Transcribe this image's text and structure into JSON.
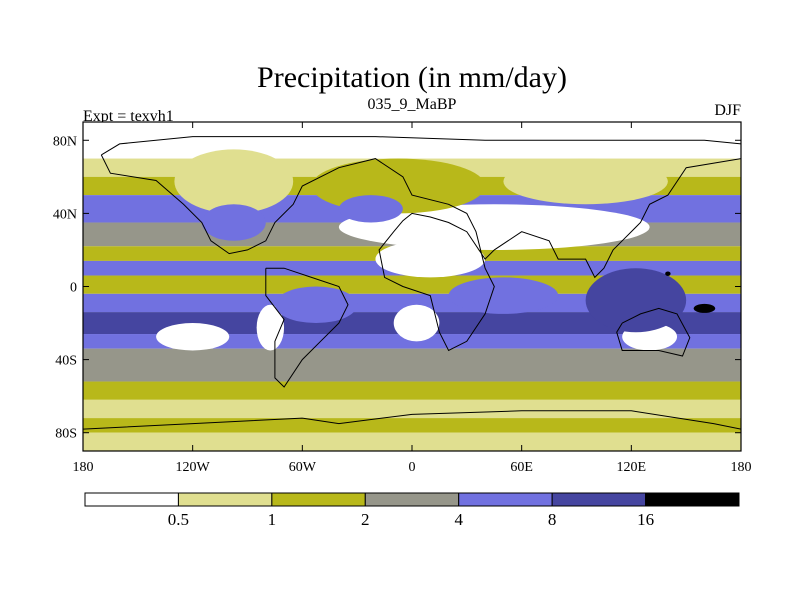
{
  "chart_data": {
    "type": "heatmap",
    "title": "Precipitation (in mm/day)",
    "subtitle_left": "Expt = texvh1",
    "subtitle_center": "035_9_MaBP",
    "subtitle_right": "DJF",
    "x_axis": {
      "range": [
        -180,
        180
      ],
      "ticks": [
        {
          "value": -180,
          "label": "180"
        },
        {
          "value": -120,
          "label": "120W"
        },
        {
          "value": -60,
          "label": "60W"
        },
        {
          "value": 0,
          "label": "0"
        },
        {
          "value": 60,
          "label": "60E"
        },
        {
          "value": 120,
          "label": "120E"
        },
        {
          "value": 180,
          "label": "180"
        }
      ]
    },
    "y_axis": {
      "range": [
        -90,
        90
      ],
      "ticks": [
        {
          "value": 80,
          "label": "80N"
        },
        {
          "value": 40,
          "label": "40N"
        },
        {
          "value": 0,
          "label": "0"
        },
        {
          "value": -40,
          "label": "40S"
        },
        {
          "value": -80,
          "label": "80S"
        }
      ]
    },
    "color_levels": [
      0.5,
      1,
      2,
      4,
      8,
      16
    ],
    "colorbar": [
      {
        "max": 0.5,
        "color": "#ffffff"
      },
      {
        "min": 0.5,
        "max": 1,
        "color": "#e0df90"
      },
      {
        "min": 1,
        "max": 2,
        "color": "#b8b81a"
      },
      {
        "min": 2,
        "max": 4,
        "color": "#96968a"
      },
      {
        "min": 4,
        "max": 8,
        "color": "#7171e0"
      },
      {
        "min": 8,
        "max": 16,
        "color": "#4545a0"
      },
      {
        "min": 16,
        "color": "#000000"
      }
    ],
    "colorbar_labels": [
      "0.5",
      "1",
      "2",
      "4",
      "8",
      "16"
    ],
    "bands": [
      {
        "lat": [
          70,
          90
        ],
        "level": 0
      },
      {
        "lat": [
          60,
          70
        ],
        "level": 1
      },
      {
        "lat": [
          50,
          60
        ],
        "level": 2
      },
      {
        "lat": [
          35,
          50
        ],
        "level": 4
      },
      {
        "lat": [
          22,
          35
        ],
        "level": 3
      },
      {
        "lat": [
          14,
          22
        ],
        "level": 2
      },
      {
        "lat": [
          6,
          14
        ],
        "level": 4
      },
      {
        "lat": [
          -4,
          6
        ],
        "level": 2
      },
      {
        "lat": [
          -14,
          -4
        ],
        "level": 4
      },
      {
        "lat": [
          -26,
          -14
        ],
        "level": 5
      },
      {
        "lat": [
          -34,
          -26
        ],
        "level": 4
      },
      {
        "lat": [
          -52,
          -34
        ],
        "level": 3
      },
      {
        "lat": [
          -62,
          -52
        ],
        "level": 2
      },
      {
        "lat": [
          -72,
          -62
        ],
        "level": 1
      },
      {
        "lat": [
          -80,
          -72
        ],
        "level": 2
      },
      {
        "lat": [
          -90,
          -80
        ],
        "level": 1
      }
    ],
    "patches": [
      {
        "lon": [
          -40,
          130
        ],
        "lat": [
          20,
          45
        ],
        "level": 0
      },
      {
        "lon": [
          -20,
          40
        ],
        "lat": [
          5,
          25
        ],
        "level": 0
      },
      {
        "lon": [
          -55,
          40
        ],
        "lat": [
          40,
          70
        ],
        "level": 2
      },
      {
        "lon": [
          -130,
          -65
        ],
        "lat": [
          40,
          75
        ],
        "level": 1
      },
      {
        "lon": [
          50,
          140
        ],
        "lat": [
          45,
          70
        ],
        "level": 1
      },
      {
        "lon": [
          -115,
          -80
        ],
        "lat": [
          25,
          45
        ],
        "level": 4
      },
      {
        "lon": [
          -40,
          -5
        ],
        "lat": [
          35,
          50
        ],
        "level": 4
      },
      {
        "lon": [
          -140,
          -100
        ],
        "lat": [
          -35,
          -20
        ],
        "level": 0
      },
      {
        "lon": [
          -85,
          -70
        ],
        "lat": [
          -35,
          -10
        ],
        "level": 0
      },
      {
        "lon": [
          -10,
          15
        ],
        "lat": [
          -30,
          -10
        ],
        "level": 0
      },
      {
        "lon": [
          115,
          145
        ],
        "lat": [
          -35,
          -20
        ],
        "level": 0
      },
      {
        "lon": [
          95,
          150
        ],
        "lat": [
          -25,
          10
        ],
        "level": 5
      },
      {
        "lon": [
          -75,
          -30
        ],
        "lat": [
          -20,
          0
        ],
        "level": 4
      },
      {
        "lon": [
          20,
          80
        ],
        "lat": [
          -15,
          5
        ],
        "level": 4
      }
    ],
    "black_spots": [
      {
        "lon": 140,
        "lat": 7,
        "size": 3
      },
      {
        "lon": 160,
        "lat": -12,
        "size": 12
      }
    ],
    "coastline": [
      [
        [
          -170,
          72
        ],
        [
          -160,
          78
        ],
        [
          -120,
          82
        ],
        [
          -70,
          82
        ],
        [
          -20,
          82
        ],
        [
          40,
          80
        ],
        [
          100,
          80
        ],
        [
          160,
          80
        ],
        [
          180,
          78
        ],
        [
          180,
          70
        ],
        [
          150,
          65
        ],
        [
          140,
          50
        ],
        [
          130,
          45
        ],
        [
          125,
          35
        ],
        [
          115,
          25
        ],
        [
          110,
          20
        ],
        [
          105,
          10
        ],
        [
          100,
          5
        ],
        [
          95,
          15
        ],
        [
          80,
          15
        ],
        [
          75,
          25
        ],
        [
          60,
          30
        ],
        [
          45,
          20
        ],
        [
          40,
          15
        ],
        [
          30,
          30
        ],
        [
          20,
          35
        ],
        [
          10,
          38
        ],
        [
          0,
          40
        ],
        [
          -5,
          36
        ],
        [
          -10,
          30
        ],
        [
          -18,
          20
        ],
        [
          -15,
          5
        ],
        [
          -5,
          0
        ],
        [
          10,
          -5
        ],
        [
          15,
          -25
        ],
        [
          20,
          -35
        ],
        [
          30,
          -30
        ],
        [
          40,
          -15
        ],
        [
          45,
          0
        ],
        [
          40,
          10
        ],
        [
          35,
          30
        ],
        [
          30,
          40
        ],
        [
          20,
          45
        ],
        [
          0,
          50
        ],
        [
          -5,
          60
        ],
        [
          -20,
          70
        ],
        [
          -40,
          65
        ],
        [
          -60,
          55
        ],
        [
          -65,
          45
        ],
        [
          -75,
          35
        ],
        [
          -80,
          25
        ],
        [
          -90,
          20
        ],
        [
          -100,
          18
        ],
        [
          -110,
          25
        ],
        [
          -115,
          35
        ],
        [
          -125,
          45
        ],
        [
          -140,
          58
        ],
        [
          -165,
          62
        ],
        [
          -170,
          72
        ]
      ],
      [
        [
          -80,
          10
        ],
        [
          -70,
          10
        ],
        [
          -55,
          5
        ],
        [
          -40,
          0
        ],
        [
          -35,
          -10
        ],
        [
          -40,
          -20
        ],
        [
          -50,
          -30
        ],
        [
          -60,
          -40
        ],
        [
          -70,
          -55
        ],
        [
          -75,
          -50
        ],
        [
          -75,
          -30
        ],
        [
          -70,
          -18
        ],
        [
          -80,
          -5
        ],
        [
          -80,
          10
        ]
      ],
      [
        [
          115,
          -20
        ],
        [
          125,
          -15
        ],
        [
          135,
          -12
        ],
        [
          145,
          -15
        ],
        [
          152,
          -28
        ],
        [
          148,
          -38
        ],
        [
          135,
          -35
        ],
        [
          115,
          -35
        ],
        [
          112,
          -25
        ],
        [
          115,
          -20
        ]
      ],
      [
        [
          -60,
          -72
        ],
        [
          -40,
          -75
        ],
        [
          0,
          -70
        ],
        [
          60,
          -68
        ],
        [
          120,
          -68
        ],
        [
          165,
          -75
        ],
        [
          180,
          -78
        ],
        [
          180,
          -90
        ],
        [
          -180,
          -90
        ],
        [
          -180,
          -78
        ],
        [
          -120,
          -75
        ],
        [
          -60,
          -72
        ]
      ]
    ]
  }
}
